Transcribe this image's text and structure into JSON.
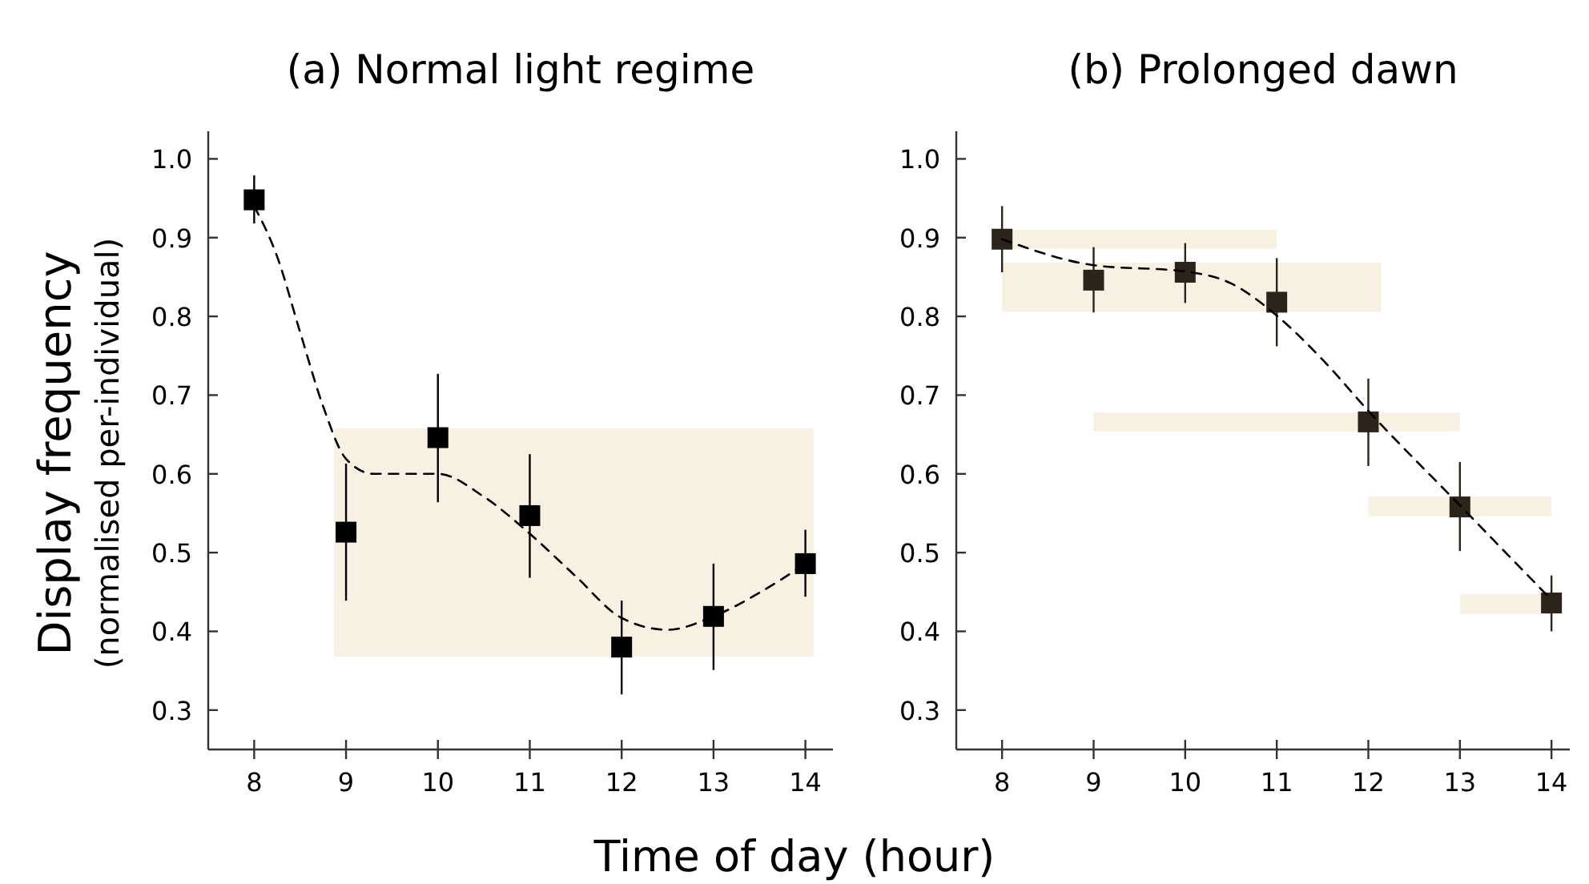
{
  "chart_data": [
    {
      "type": "scatter",
      "title": "(a) Normal light regime",
      "ylabel": "Display frequency\n(normalised per-individual)",
      "xlabel": "Time of day (hour)",
      "x": [
        8,
        9,
        10,
        11,
        12,
        13,
        14
      ],
      "xlim": [
        7.5,
        14.3
      ],
      "xticks": [
        8,
        9,
        10,
        11,
        12,
        13,
        14
      ],
      "ylim": [
        0.25,
        1.035
      ],
      "yticks": [
        {
          "value": 0.3,
          "label": "0.3"
        },
        {
          "value": 0.4,
          "label": "0.4"
        },
        {
          "value": 0.5,
          "label": "0.5"
        },
        {
          "value": 0.6,
          "label": "0.6"
        },
        {
          "value": 0.7,
          "label": "0.7"
        },
        {
          "value": 0.8,
          "label": "0.8"
        },
        {
          "value": 0.9,
          "label": "0.9"
        },
        {
          "value": 1.0,
          "label": "1.0"
        }
      ],
      "grid": false,
      "series": [
        {
          "type": "scatter",
          "color": "#000000",
          "marker": "square",
          "values": [
            0.948,
            0.526,
            0.646,
            0.547,
            0.38,
            0.419,
            0.486
          ],
          "errors": [
            [
              0.918,
              0.979
            ],
            [
              0.439,
              0.613
            ],
            [
              0.564,
              0.727
            ],
            [
              0.468,
              0.625
            ],
            [
              0.32,
              0.439
            ],
            [
              0.351,
              0.486
            ],
            [
              0.444,
              0.529
            ]
          ]
        },
        {
          "type": "line",
          "color": "#000000",
          "line_style": "dashed",
          "marker": "none",
          "x": [
            8,
            8.25,
            8.5,
            8.75,
            9,
            9.3,
            10,
            10.5,
            11,
            11.5,
            12,
            12.5,
            13,
            13.5,
            14
          ],
          "values": [
            0.94,
            0.876,
            0.78,
            0.686,
            0.619,
            0.6,
            0.6,
            0.571,
            0.524,
            0.47,
            0.417,
            0.402,
            0.419,
            0.449,
            0.486
          ]
        }
      ]
    },
    {
      "type": "scatter",
      "title": "(b) Prolonged dawn",
      "x": [
        8,
        9,
        10,
        11,
        12,
        13,
        14
      ],
      "xlim": [
        7.5,
        14.2
      ],
      "xticks": [
        8,
        9,
        10,
        11,
        12,
        13,
        14
      ],
      "ylim": [
        0.25,
        1.035
      ],
      "yticks": [
        {
          "value": 0.3,
          "label": "0.3"
        },
        {
          "value": 0.4,
          "label": "0.4"
        },
        {
          "value": 0.5,
          "label": "0.5"
        },
        {
          "value": 0.6,
          "label": "0.6"
        },
        {
          "value": 0.7,
          "label": "0.7"
        },
        {
          "value": 0.8,
          "label": "0.8"
        },
        {
          "value": 0.9,
          "label": "0.9"
        },
        {
          "value": 1.0,
          "label": "1.0"
        }
      ],
      "grid": false,
      "series": [
        {
          "type": "scatter",
          "color": "#2a241a",
          "marker": "square",
          "values": [
            0.898,
            0.846,
            0.856,
            0.818,
            0.666,
            0.558,
            0.436
          ],
          "errors": [
            [
              0.856,
              0.94
            ],
            [
              0.805,
              0.888
            ],
            [
              0.817,
              0.893
            ],
            [
              0.762,
              0.874
            ],
            [
              0.61,
              0.721
            ],
            [
              0.502,
              0.615
            ],
            [
              0.4,
              0.471
            ]
          ]
        },
        {
          "type": "line",
          "color": "#000000",
          "line_style": "dashed",
          "marker": "none",
          "x": [
            8,
            9,
            10,
            10.5,
            11,
            11.5,
            12,
            13,
            14
          ],
          "values": [
            0.898,
            0.865,
            0.857,
            0.842,
            0.801,
            0.745,
            0.68,
            0.56,
            0.44
          ]
        }
      ]
    }
  ]
}
